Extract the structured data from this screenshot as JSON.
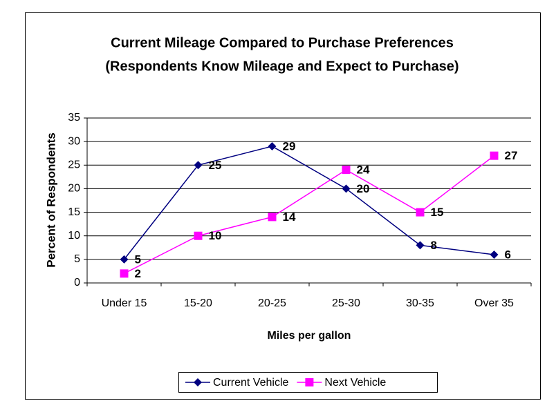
{
  "chart_data": {
    "type": "line",
    "title": "Current Mileage Compared to Purchase Preferences",
    "subtitle": "(Respondents Know Mileage and Expect to Purchase)",
    "x_label": "Miles per gallon",
    "y_label": "Percent of Respondents",
    "categories": [
      "Under 15",
      "15-20",
      "20-25",
      "25-30",
      "30-35",
      "Over 35"
    ],
    "series": [
      {
        "name": "Current Vehicle",
        "color": "#000080",
        "marker": "diamond",
        "values": [
          5,
          25,
          29,
          20,
          8,
          6
        ]
      },
      {
        "name": "Next Vehicle",
        "color": "#ff00ff",
        "marker": "square",
        "values": [
          2,
          10,
          14,
          24,
          15,
          27
        ]
      }
    ],
    "ylim": [
      0,
      35
    ],
    "yticks": [
      0,
      5,
      10,
      15,
      20,
      25,
      30,
      35
    ],
    "grid": true,
    "legend": "bottom"
  }
}
